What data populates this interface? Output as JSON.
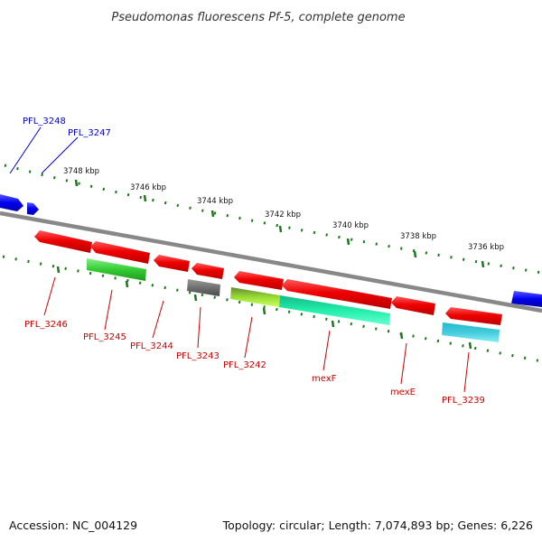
{
  "title": "Pseudomonas fluorescens Pf-5, complete genome",
  "footer": {
    "accession": "Accession: NC_004129",
    "summary": "Topology: circular; Length: 7,074,893 bp; Genes: 6,226"
  },
  "ticks": [
    "3748 kbp",
    "3746 kbp",
    "3744 kbp",
    "3742 kbp",
    "3740 kbp",
    "3738 kbp",
    "3736 kbp"
  ],
  "genes": {
    "pfl3248": "PFL_3248",
    "pfl3247": "PFL_3247",
    "pfl3246": "PFL_3246",
    "pfl3245": "PFL_3245",
    "pfl3244": "PFL_3244",
    "pfl3243": "PFL_3243",
    "pfl3242": "PFL_3242",
    "mexF": "mexF",
    "mexE": "mexE",
    "pfl3239": "PFL_3239"
  },
  "colors": {
    "forward_gene": "#0000dd",
    "reverse_gene": "#ee0000",
    "forward_label": "#0000cc",
    "reverse_label": "#cc0000",
    "backbone": "#888888",
    "dots": "#1a7a1a",
    "cog_green": "#33cc33",
    "cog_gray": "#707070",
    "cog_yellowgreen": "#99dd33",
    "cog_teal": "#22eeaa",
    "cog_cyan": "#22bbcc"
  }
}
